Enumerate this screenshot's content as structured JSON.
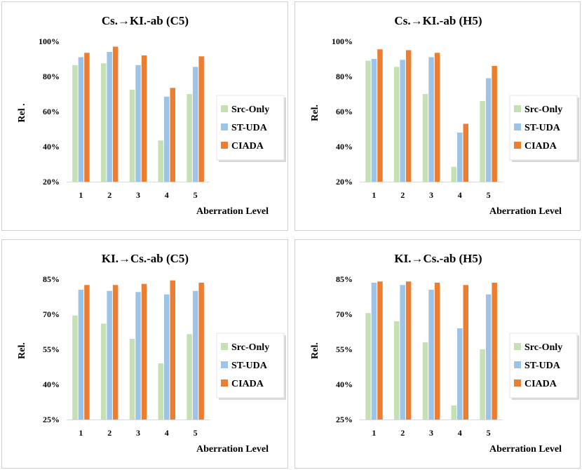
{
  "legend_series": [
    "Src-Only",
    "ST-UDA",
    "CIADA"
  ],
  "colors": {
    "Src-Only": "#c5e0b4",
    "ST-UDA": "#9dc3e6",
    "CIADA": "#ed7d31"
  },
  "chart_data": [
    {
      "type": "bar",
      "title": "Cs.→KI.-ab (C5)",
      "xlabel": "Aberration Level",
      "ylabel": "Rel .",
      "categories": [
        "1",
        "2",
        "3",
        "4",
        "5"
      ],
      "ylim": [
        20,
        100
      ],
      "yticks": [
        20,
        40,
        60,
        80,
        100
      ],
      "ytick_labels": [
        "20%",
        "40%",
        "60%",
        "80%",
        "100%"
      ],
      "series": [
        {
          "name": "Src-Only",
          "values": [
            86.5,
            87.5,
            72.5,
            43.5,
            70
          ]
        },
        {
          "name": "ST-UDA",
          "values": [
            91,
            94,
            86.5,
            68.5,
            85.5
          ]
        },
        {
          "name": "CIADA",
          "values": [
            93.5,
            97,
            92,
            73.5,
            91.5
          ]
        }
      ]
    },
    {
      "type": "bar",
      "title": "Cs.→KI.-ab (H5)",
      "xlabel": "Aberration Level",
      "ylabel": "Rel.",
      "categories": [
        "1",
        "2",
        "3",
        "4",
        "5"
      ],
      "ylim": [
        20,
        100
      ],
      "yticks": [
        20,
        40,
        60,
        80,
        100
      ],
      "ytick_labels": [
        "20%",
        "40%",
        "60%",
        "80%",
        "100%"
      ],
      "series": [
        {
          "name": "Src-Only",
          "values": [
            89,
            85.5,
            70,
            28.5,
            66
          ]
        },
        {
          "name": "ST-UDA",
          "values": [
            90,
            89.5,
            91,
            48,
            79
          ]
        },
        {
          "name": "CIADA",
          "values": [
            95.5,
            95,
            93.5,
            53,
            86
          ]
        }
      ]
    },
    {
      "type": "bar",
      "title": "KI.→Cs.-ab (C5)",
      "xlabel": "Aberration Level",
      "ylabel": "Rel.",
      "categories": [
        "1",
        "2",
        "3",
        "4",
        "5"
      ],
      "ylim": [
        25,
        85
      ],
      "yticks": [
        25,
        40,
        55,
        70,
        85
      ],
      "ytick_labels": [
        "25%",
        "40%",
        "55%",
        "70%",
        "85%"
      ],
      "series": [
        {
          "name": "Src-Only",
          "values": [
            69.5,
            66,
            59.5,
            49,
            61.5
          ]
        },
        {
          "name": "ST-UDA",
          "values": [
            80.5,
            80,
            79.5,
            78.5,
            80
          ]
        },
        {
          "name": "CIADA",
          "values": [
            82.5,
            82.5,
            83,
            84.5,
            83.5
          ]
        }
      ]
    },
    {
      "type": "bar",
      "title": "KI.→Cs.-ab (H5)",
      "xlabel": "Aberration Level",
      "ylabel": "Rel.",
      "categories": [
        "1",
        "2",
        "3",
        "4",
        "5"
      ],
      "ylim": [
        25,
        85
      ],
      "yticks": [
        25,
        40,
        55,
        70,
        85
      ],
      "ytick_labels": [
        "25%",
        "40%",
        "55%",
        "70%",
        "85%"
      ],
      "series": [
        {
          "name": "Src-Only",
          "values": [
            70.5,
            67,
            58,
            31,
            55
          ]
        },
        {
          "name": "ST-UDA",
          "values": [
            83.5,
            82.5,
            80.5,
            64,
            78.5
          ]
        },
        {
          "name": "CIADA",
          "values": [
            84,
            84,
            83.5,
            82.5,
            83.5
          ]
        }
      ]
    }
  ]
}
